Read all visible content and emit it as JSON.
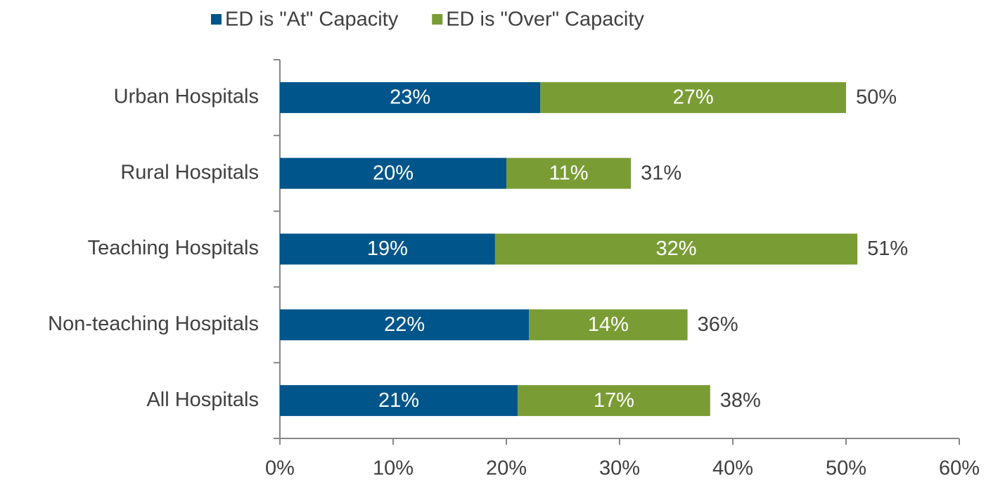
{
  "chart_data": {
    "type": "stacked_bar_horizontal",
    "categories": [
      "Urban Hospitals",
      "Rural Hospitals",
      "Teaching Hospitals",
      "Non-teaching Hospitals",
      "All Hospitals"
    ],
    "series": [
      {
        "name": "ED is \"At\" Capacity",
        "color": "#00558b",
        "values": [
          23,
          20,
          19,
          22,
          21
        ],
        "value_labels": [
          "23%",
          "20%",
          "19%",
          "22%",
          "21%"
        ]
      },
      {
        "name": "ED is \"Over\" Capacity",
        "color": "#7a9c35",
        "values": [
          27,
          11,
          32,
          14,
          17
        ],
        "value_labels": [
          "27%",
          "11%",
          "32%",
          "14%",
          "17%"
        ]
      }
    ],
    "totals": [
      50,
      31,
      51,
      36,
      38
    ],
    "total_labels": [
      "50%",
      "31%",
      "51%",
      "36%",
      "38%"
    ],
    "xlim": [
      0,
      60
    ],
    "xticks": [
      {
        "value": 0,
        "label": "0%"
      },
      {
        "value": 10,
        "label": "10%"
      },
      {
        "value": 20,
        "label": "20%"
      },
      {
        "value": 30,
        "label": "30%"
      },
      {
        "value": 40,
        "label": "40%"
      },
      {
        "value": 50,
        "label": "50%"
      },
      {
        "value": 60,
        "label": "60%"
      }
    ],
    "legend": "top"
  }
}
